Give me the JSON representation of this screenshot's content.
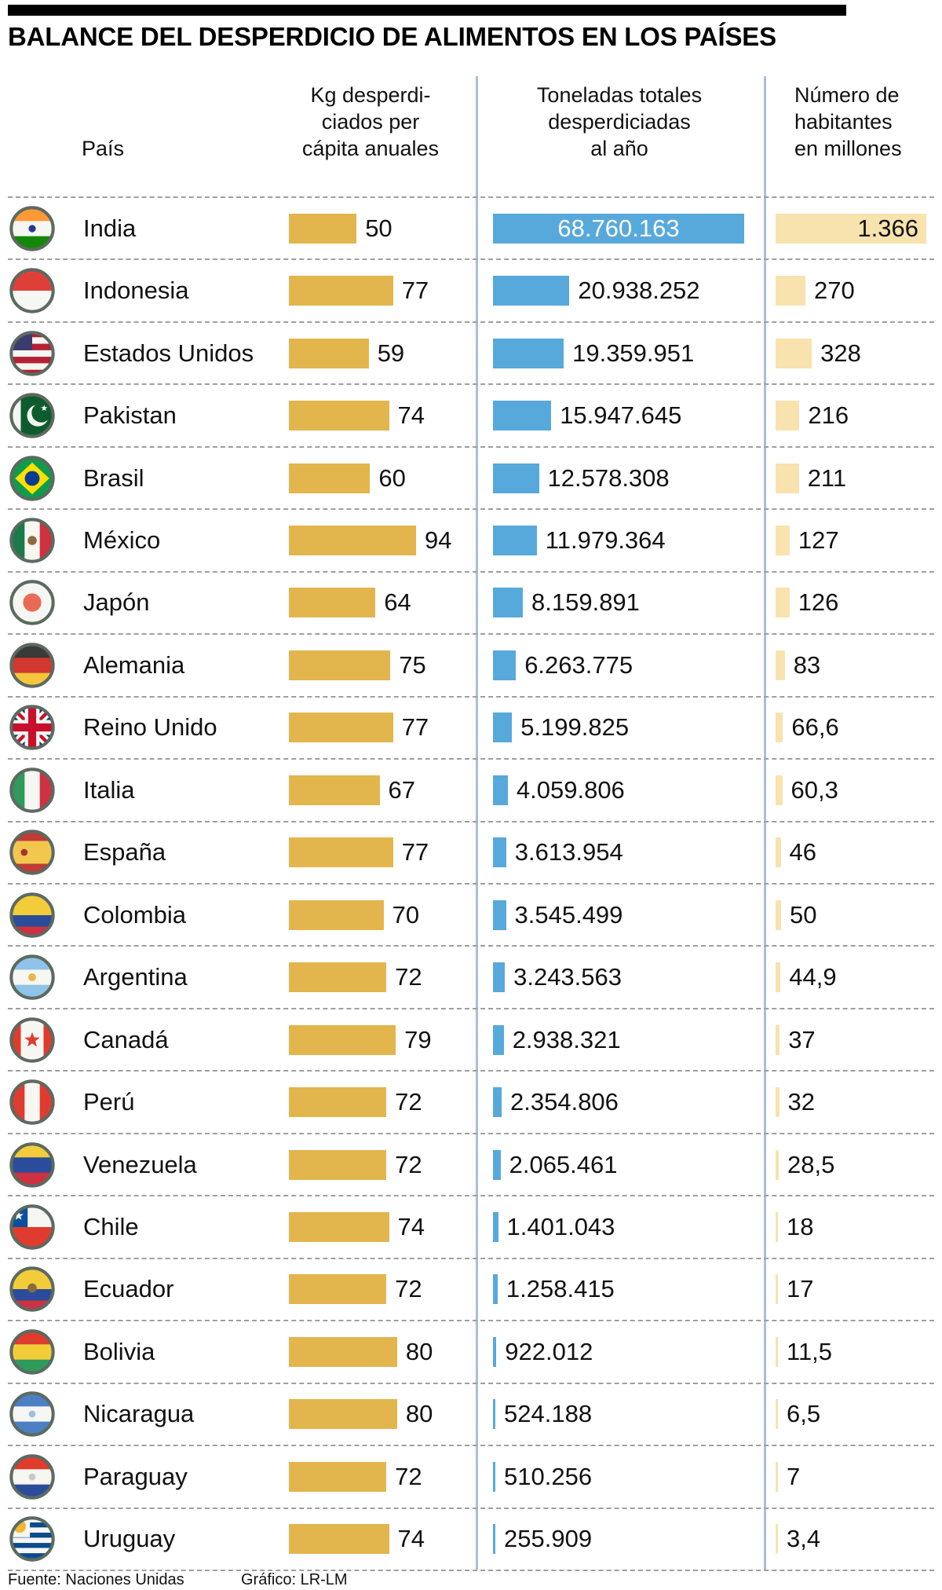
{
  "title": "BALANCE DEL DESPERDICIO DE ALIMENTOS EN LOS PAÍSES",
  "headers": {
    "pais": "País",
    "kg": "Kg desperdi-\nciados per\ncápita anuales",
    "tons": "Toneladas totales\ndesperdiciadas\nal año",
    "pop": "Número de\nhabitantes\nen millones"
  },
  "footer": {
    "source": "Fuente: Naciones Unidas",
    "credit": "Gráfico: LR-LM"
  },
  "colors": {
    "bar_gold": "#E3B54D",
    "bar_blue": "#57A9DC",
    "bar_cream": "#F8E3AE",
    "flag_ring": "#5C6A60",
    "dashed_line": "#9F9F9F",
    "column_separator": "#A9BFD7",
    "top_rule": "#000000"
  },
  "chart_data": {
    "type": "bar",
    "orientation": "horizontal",
    "title": "BALANCE DEL DESPERDICIO DE ALIMENTOS EN LOS PAÍSES",
    "categories": [
      "India",
      "Indonesia",
      "Estados Unidos",
      "Pakistan",
      "Brasil",
      "México",
      "Japón",
      "Alemania",
      "Reino Unido",
      "Italia",
      "España",
      "Colombia",
      "Argentina",
      "Canadá",
      "Perú",
      "Venezuela",
      "Chile",
      "Ecuador",
      "Bolivia",
      "Nicaragua",
      "Paraguay",
      "Uruguay"
    ],
    "series": [
      {
        "name": "Kg desperdiciados per cápita anuales",
        "values": [
          50,
          77,
          59,
          74,
          60,
          94,
          64,
          75,
          77,
          67,
          77,
          70,
          72,
          79,
          72,
          72,
          74,
          72,
          80,
          80,
          72,
          74
        ]
      },
      {
        "name": "Toneladas totales desperdiciadas al año",
        "values": [
          68760163,
          20938252,
          19359951,
          15947645,
          12578308,
          11979364,
          8159891,
          6263775,
          5199825,
          4059806,
          3613954,
          3545499,
          3243563,
          2938321,
          2354806,
          2065461,
          1401043,
          1258415,
          922012,
          524188,
          510256,
          255909
        ]
      },
      {
        "name": "Número de habitantes en millones",
        "values": [
          1366,
          270,
          328,
          216,
          211,
          127,
          126,
          83,
          66.6,
          60.3,
          46,
          50,
          44.9,
          37,
          32,
          28.5,
          18,
          17,
          11.5,
          6.5,
          7,
          3.4
        ]
      }
    ],
    "legend_position": "none",
    "grid": false,
    "source": "Fuente: Naciones Unidas",
    "credit": "Gráfico: LR-LM"
  },
  "rows": [
    {
      "name": "India",
      "kg": 50,
      "kg_label": "50",
      "tons": 68760163,
      "tons_label": "68.760.163",
      "tons_inside": true,
      "pop": 1366,
      "pop_label": "1.366",
      "pop_inside": true,
      "flag": {
        "t": "h",
        "c": [
          "#FF9933",
          "#F6F6F2",
          "#138808"
        ],
        "e": [
          {
            "s": "c",
            "c": "#223B8F",
            "x": 20,
            "y": 20,
            "r": 3.2
          }
        ]
      }
    },
    {
      "name": "Indonesia",
      "kg": 77,
      "kg_label": "77",
      "tons": 20938252,
      "tons_label": "20.938.252",
      "tons_inside": false,
      "pop": 270,
      "pop_label": "270",
      "pop_inside": false,
      "flag": {
        "t": "h",
        "c": [
          "#DE4038",
          "#F6F6F2"
        ]
      }
    },
    {
      "name": "Estados Unidos",
      "kg": 59,
      "kg_label": "59",
      "tons": 19359951,
      "tons_label": "19.359.951",
      "tons_inside": false,
      "pop": 328,
      "pop_label": "328",
      "pop_inside": false,
      "flag": {
        "t": "usa"
      }
    },
    {
      "name": "Pakistan",
      "kg": 74,
      "kg_label": "74",
      "tons": 15947645,
      "tons_label": "15.947.645",
      "tons_inside": false,
      "pop": 216,
      "pop_label": "216",
      "pop_inside": false,
      "flag": {
        "t": "pak"
      }
    },
    {
      "name": "Brasil",
      "kg": 60,
      "kg_label": "60",
      "tons": 12578308,
      "tons_label": "12.578.308",
      "tons_inside": false,
      "pop": 211,
      "pop_label": "211",
      "pop_inside": false,
      "flag": {
        "t": "bra"
      }
    },
    {
      "name": "México",
      "kg": 94,
      "kg_label": "94",
      "tons": 11979364,
      "tons_label": "11.979.364",
      "tons_inside": false,
      "pop": 127,
      "pop_label": "127",
      "pop_inside": false,
      "flag": {
        "t": "v",
        "c": [
          "#1A7A4A",
          "#F6F6F2",
          "#CE3140"
        ],
        "e": [
          {
            "s": "c",
            "c": "#8A6B42",
            "x": 20,
            "y": 20,
            "r": 4
          }
        ]
      }
    },
    {
      "name": "Japón",
      "kg": 64,
      "kg_label": "64",
      "tons": 8159891,
      "tons_label": "8.159.891",
      "tons_inside": false,
      "pop": 126,
      "pop_label": "126",
      "pop_inside": false,
      "flag": {
        "t": "h",
        "c": [
          "#F6F6F2"
        ],
        "e": [
          {
            "s": "c",
            "c": "#E96A55",
            "x": 20,
            "y": 20,
            "r": 8
          }
        ]
      }
    },
    {
      "name": "Alemania",
      "kg": 75,
      "kg_label": "75",
      "tons": 6263775,
      "tons_label": "6.263.775",
      "tons_inside": false,
      "pop": 83,
      "pop_label": "83",
      "pop_inside": false,
      "flag": {
        "t": "h",
        "c": [
          "#3A3A3A",
          "#D2382F",
          "#F5C53C"
        ]
      }
    },
    {
      "name": "Reino Unido",
      "kg": 77,
      "kg_label": "77",
      "tons": 5199825,
      "tons_label": "5.199.825",
      "tons_inside": false,
      "pop": 66.6,
      "pop_label": "66,6",
      "pop_inside": false,
      "flag": {
        "t": "uk"
      }
    },
    {
      "name": "Italia",
      "kg": 67,
      "kg_label": "67",
      "tons": 4059806,
      "tons_label": "4.059.806",
      "tons_inside": false,
      "pop": 60.3,
      "pop_label": "60,3",
      "pop_inside": false,
      "flag": {
        "t": "v",
        "c": [
          "#2E9A5C",
          "#F6F6F2",
          "#CE3140"
        ]
      }
    },
    {
      "name": "España",
      "kg": 77,
      "kg_label": "77",
      "tons": 3613954,
      "tons_label": "3.613.954",
      "tons_inside": false,
      "pop": 46,
      "pop_label": "46",
      "pop_inside": false,
      "flag": {
        "t": "h",
        "c": [
          "#C03A36",
          "#F2C74E",
          "#C03A36"
        ],
        "w": [
          1,
          2,
          1
        ],
        "e": [
          {
            "s": "c",
            "c": "#A93230",
            "x": 13,
            "y": 20,
            "r": 3
          }
        ]
      }
    },
    {
      "name": "Colombia",
      "kg": 70,
      "kg_label": "70",
      "tons": 3545499,
      "tons_label": "3.545.499",
      "tons_inside": false,
      "pop": 50,
      "pop_label": "50",
      "pop_inside": false,
      "flag": {
        "t": "h",
        "c": [
          "#F2CD39",
          "#2B4C9B",
          "#CE3140"
        ],
        "w": [
          2,
          1,
          1
        ]
      }
    },
    {
      "name": "Argentina",
      "kg": 72,
      "kg_label": "72",
      "tons": 3243563,
      "tons_label": "3.243.563",
      "tons_inside": false,
      "pop": 44.9,
      "pop_label": "44,9",
      "pop_inside": false,
      "flag": {
        "t": "h",
        "c": [
          "#8FC3E8",
          "#F6F6F2",
          "#8FC3E8"
        ],
        "e": [
          {
            "s": "c",
            "c": "#E8B44C",
            "x": 20,
            "y": 20,
            "r": 3.4
          }
        ]
      }
    },
    {
      "name": "Canadá",
      "kg": 79,
      "kg_label": "79",
      "tons": 2938321,
      "tons_label": "2.938.321",
      "tons_inside": false,
      "pop": 37,
      "pop_label": "37",
      "pop_inside": false,
      "flag": {
        "t": "v",
        "c": [
          "#DF3B2F",
          "#F6F6F2",
          "#DF3B2F"
        ],
        "w": [
          1,
          2,
          1
        ],
        "e": [
          {
            "s": "star",
            "c": "#DF3B2F",
            "x": 20,
            "y": 20,
            "r": 7
          }
        ]
      }
    },
    {
      "name": "Perú",
      "kg": 72,
      "kg_label": "72",
      "tons": 2354806,
      "tons_label": "2.354.806",
      "tons_inside": false,
      "pop": 32,
      "pop_label": "32",
      "pop_inside": false,
      "flag": {
        "t": "v",
        "c": [
          "#DF3B2F",
          "#F6F6F2",
          "#DF3B2F"
        ]
      }
    },
    {
      "name": "Venezuela",
      "kg": 72,
      "kg_label": "72",
      "tons": 2065461,
      "tons_label": "2.065.461",
      "tons_inside": false,
      "pop": 28.5,
      "pop_label": "28,5",
      "pop_inside": false,
      "flag": {
        "t": "h",
        "c": [
          "#F2CD39",
          "#2B4C9B",
          "#CE3140"
        ]
      }
    },
    {
      "name": "Chile",
      "kg": 74,
      "kg_label": "74",
      "tons": 1401043,
      "tons_label": "1.401.043",
      "tons_inside": false,
      "pop": 18,
      "pop_label": "18",
      "pop_inside": false,
      "flag": {
        "t": "chi"
      }
    },
    {
      "name": "Ecuador",
      "kg": 72,
      "kg_label": "72",
      "tons": 1258415,
      "tons_label": "1.258.415",
      "tons_inside": false,
      "pop": 17,
      "pop_label": "17",
      "pop_inside": false,
      "flag": {
        "t": "h",
        "c": [
          "#F2CD39",
          "#2B4C9B",
          "#CE3140"
        ],
        "w": [
          2,
          1,
          1
        ],
        "e": [
          {
            "s": "c",
            "c": "#8A6B42",
            "x": 20,
            "y": 19,
            "r": 4
          }
        ]
      }
    },
    {
      "name": "Bolivia",
      "kg": 80,
      "kg_label": "80",
      "tons": 922012,
      "tons_label": "922.012",
      "tons_inside": false,
      "pop": 11.5,
      "pop_label": "11,5",
      "pop_inside": false,
      "flag": {
        "t": "h",
        "c": [
          "#DF3B2F",
          "#F2CD39",
          "#2E9A5C"
        ]
      }
    },
    {
      "name": "Nicaragua",
      "kg": 80,
      "kg_label": "80",
      "tons": 524188,
      "tons_label": "524.188",
      "tons_inside": false,
      "pop": 6.5,
      "pop_label": "6,5",
      "pop_inside": false,
      "flag": {
        "t": "h",
        "c": [
          "#4C7FC4",
          "#F6F6F2",
          "#4C7FC4"
        ],
        "e": [
          {
            "s": "c",
            "c": "#9BC0E4",
            "x": 20,
            "y": 20,
            "r": 3
          }
        ]
      }
    },
    {
      "name": "Paraguay",
      "kg": 72,
      "kg_label": "72",
      "tons": 510256,
      "tons_label": "510.256",
      "tons_inside": false,
      "pop": 7,
      "pop_label": "7",
      "pop_inside": false,
      "flag": {
        "t": "h",
        "c": [
          "#DF3B2F",
          "#F6F6F2",
          "#2B4C9B"
        ],
        "e": [
          {
            "s": "c",
            "c": "#C9C9C9",
            "x": 20,
            "y": 20,
            "r": 3
          }
        ]
      }
    },
    {
      "name": "Uruguay",
      "kg": 74,
      "kg_label": "74",
      "tons": 255909,
      "tons_label": "255.909",
      "tons_inside": false,
      "pop": 3.4,
      "pop_label": "3,4",
      "pop_inside": false,
      "flag": {
        "t": "uru"
      }
    }
  ]
}
